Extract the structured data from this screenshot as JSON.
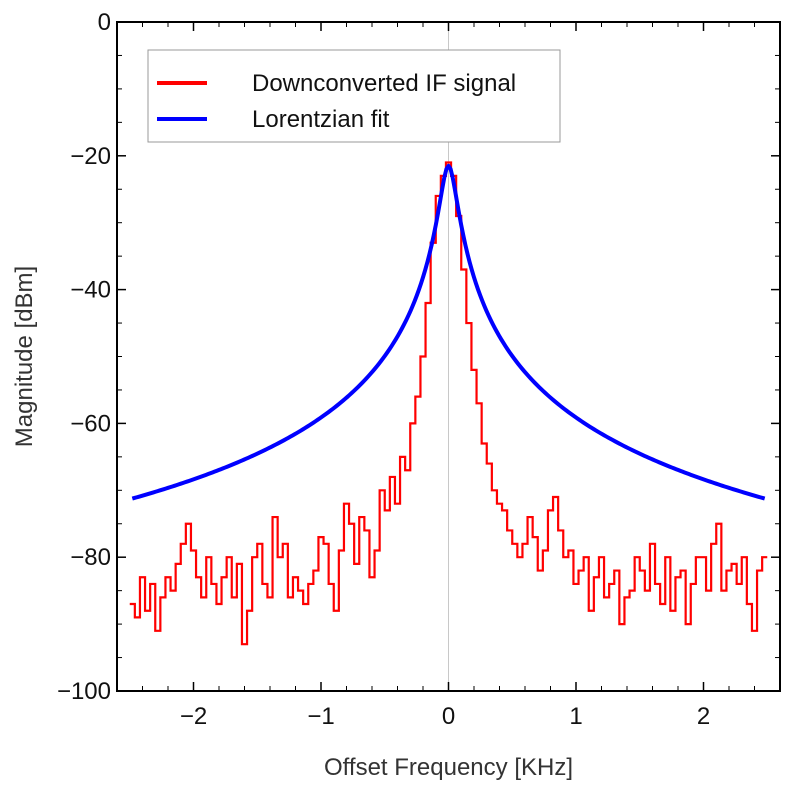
{
  "chart_data": {
    "type": "line",
    "title": "",
    "xlabel": "Offset Frequency [KHz]",
    "ylabel": "Magnitude [dBm]",
    "xlim": [
      -2.6,
      2.6
    ],
    "ylim": [
      -100,
      0
    ],
    "xticks": [
      -2,
      -1,
      0,
      1,
      2
    ],
    "xtick_labels": [
      "−2",
      "−1",
      "0",
      "1",
      "2"
    ],
    "yticks": [
      0,
      -20,
      -40,
      -60,
      -80,
      -100
    ],
    "ytick_labels": [
      "0",
      "−20",
      "−40",
      "−60",
      "−80",
      "−100"
    ],
    "grid": false,
    "zero_line": true,
    "legend_position": "top-left",
    "series": [
      {
        "name": "Downconverted IF signal",
        "color": "#ff0000",
        "style": "step",
        "x": [
          -2.48,
          -2.44,
          -2.4,
          -2.36,
          -2.32,
          -2.28,
          -2.24,
          -2.2,
          -2.16,
          -2.12,
          -2.08,
          -2.04,
          -2.0,
          -1.96,
          -1.92,
          -1.88,
          -1.84,
          -1.8,
          -1.76,
          -1.72,
          -1.68,
          -1.64,
          -1.6,
          -1.56,
          -1.52,
          -1.48,
          -1.44,
          -1.4,
          -1.36,
          -1.32,
          -1.28,
          -1.24,
          -1.2,
          -1.16,
          -1.12,
          -1.08,
          -1.04,
          -1.0,
          -0.96,
          -0.92,
          -0.88,
          -0.84,
          -0.8,
          -0.76,
          -0.72,
          -0.68,
          -0.64,
          -0.6,
          -0.56,
          -0.52,
          -0.48,
          -0.44,
          -0.4,
          -0.36,
          -0.32,
          -0.28,
          -0.24,
          -0.2,
          -0.16,
          -0.12,
          -0.08,
          -0.04,
          0.0,
          0.04,
          0.08,
          0.12,
          0.16,
          0.2,
          0.24,
          0.28,
          0.32,
          0.36,
          0.4,
          0.44,
          0.48,
          0.52,
          0.56,
          0.6,
          0.64,
          0.68,
          0.72,
          0.76,
          0.8,
          0.84,
          0.88,
          0.92,
          0.96,
          1.0,
          1.04,
          1.08,
          1.12,
          1.16,
          1.2,
          1.24,
          1.28,
          1.32,
          1.36,
          1.4,
          1.44,
          1.48,
          1.52,
          1.56,
          1.6,
          1.64,
          1.68,
          1.72,
          1.76,
          1.8,
          1.84,
          1.88,
          1.92,
          1.96,
          2.0,
          2.04,
          2.08,
          2.12,
          2.16,
          2.2,
          2.24,
          2.28,
          2.32,
          2.36,
          2.4,
          2.44,
          2.48
        ],
        "values": [
          -87,
          -89,
          -83,
          -88,
          -84,
          -91,
          -86,
          -83,
          -85,
          -81,
          -78,
          -75,
          -79,
          -83,
          -86,
          -80,
          -84,
          -87,
          -83,
          -80,
          -86,
          -81,
          -93,
          -88,
          -80,
          -78,
          -84,
          -86,
          -74,
          -80,
          -78,
          -86,
          -83,
          -85,
          -87,
          -84,
          -82,
          -77,
          -78,
          -84,
          -88,
          -79,
          -72,
          -75,
          -81,
          -74,
          -76,
          -83,
          -79,
          -70,
          -73,
          -68,
          -72,
          -65,
          -67,
          -60,
          -56,
          -50,
          -42,
          -33,
          -26,
          -23,
          -21,
          -23,
          -29,
          -37,
          -45,
          -52,
          -57,
          -63,
          -66,
          -70,
          -72,
          -73,
          -76,
          -78,
          -80,
          -78,
          -74,
          -77,
          -82,
          -79,
          -73,
          -71,
          -76,
          -80,
          -79,
          -84,
          -82,
          -80,
          -88,
          -83,
          -80,
          -86,
          -84,
          -82,
          -90,
          -86,
          -85,
          -80,
          -82,
          -85,
          -78,
          -84,
          -87,
          -80,
          -88,
          -83,
          -82,
          -90,
          -84,
          -80,
          -80,
          -85,
          -78,
          -75,
          -85,
          -82,
          -81,
          -84,
          -80,
          -87,
          -91,
          -82,
          -80
        ]
      },
      {
        "name": "Lorentzian fit",
        "color": "#0000ff",
        "style": "line",
        "model": "lorentzian",
        "center": 0,
        "peak": -21.5,
        "x_range": [
          -2.48,
          2.48
        ]
      }
    ]
  },
  "legend": {
    "items": [
      {
        "label": "Downconverted IF signal",
        "color": "#ff0000"
      },
      {
        "label": "Lorentzian fit",
        "color": "#0000ff"
      }
    ]
  }
}
